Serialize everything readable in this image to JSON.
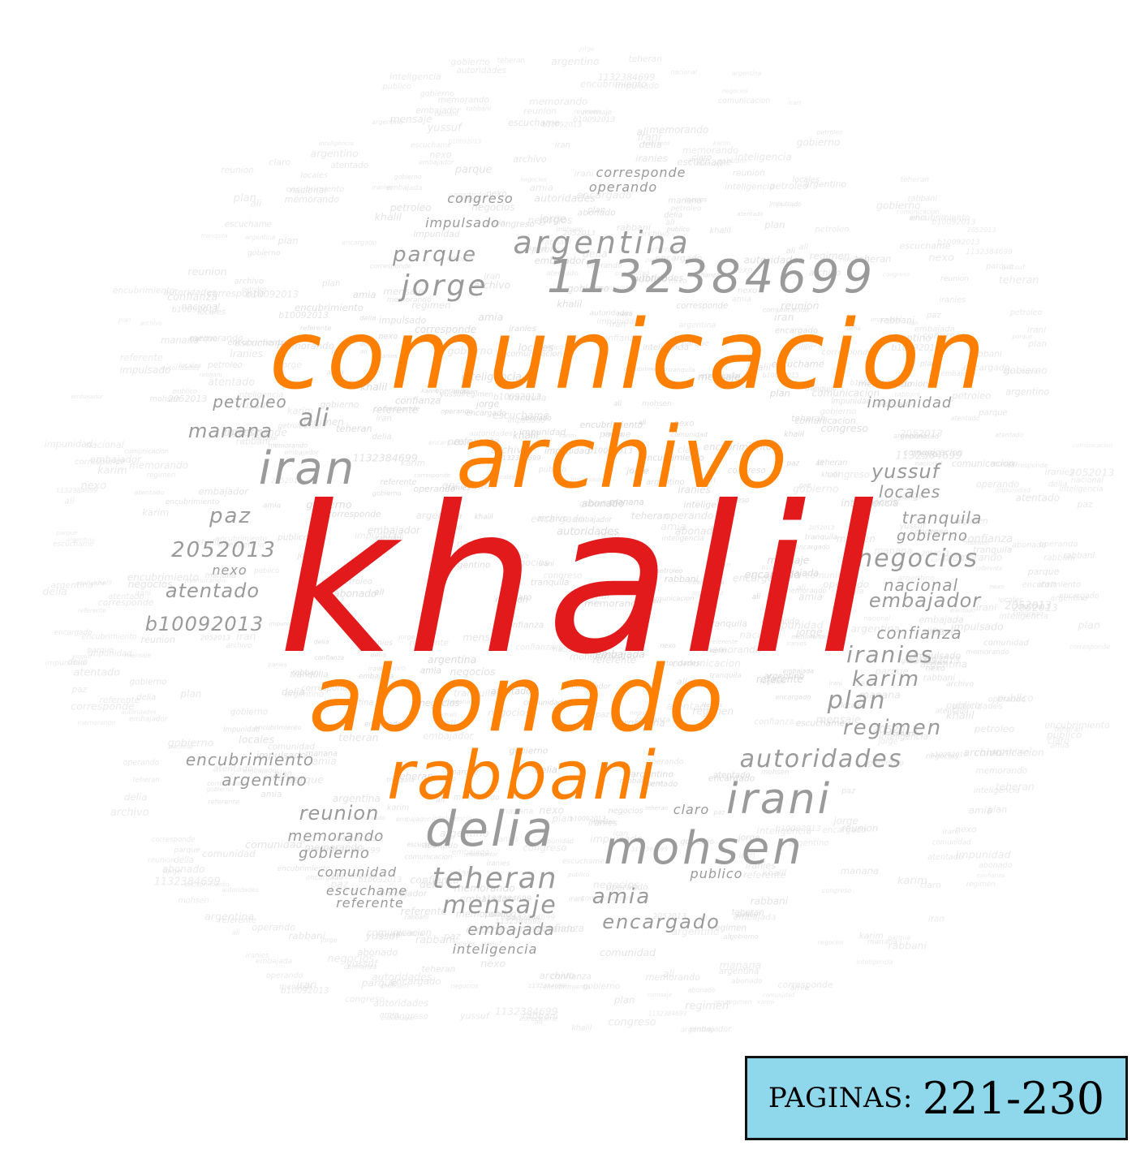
{
  "cloud": {
    "colors": {
      "primary": "#e31a1c",
      "secondary": "#ff7f00",
      "tertiary": "#9a9a9a",
      "background_words": "#d6d6d6"
    },
    "words": [
      {
        "text": "khalil",
        "tier": "primary"
      },
      {
        "text": "comunicacion",
        "tier": "secondary"
      },
      {
        "text": "archivo",
        "tier": "secondary"
      },
      {
        "text": "abonado",
        "tier": "secondary"
      },
      {
        "text": "rabbani",
        "tier": "secondary"
      },
      {
        "text": "1132384699",
        "tier": "tertiary"
      },
      {
        "text": "argentina",
        "tier": "tertiary"
      },
      {
        "text": "parque",
        "tier": "tertiary"
      },
      {
        "text": "jorge",
        "tier": "tertiary"
      },
      {
        "text": "iran",
        "tier": "tertiary"
      },
      {
        "text": "delia",
        "tier": "tertiary"
      },
      {
        "text": "mohsen",
        "tier": "tertiary"
      },
      {
        "text": "irani",
        "tier": "tertiary"
      },
      {
        "text": "teheran",
        "tier": "tertiary"
      },
      {
        "text": "mensaje",
        "tier": "tertiary"
      },
      {
        "text": "amia",
        "tier": "tertiary"
      },
      {
        "text": "encargado",
        "tier": "tertiary"
      },
      {
        "text": "autoridades",
        "tier": "tertiary"
      },
      {
        "text": "negocios",
        "tier": "tertiary"
      },
      {
        "text": "nacional",
        "tier": "tertiary"
      },
      {
        "text": "embajador",
        "tier": "tertiary"
      },
      {
        "text": "confianza",
        "tier": "tertiary"
      },
      {
        "text": "iranies",
        "tier": "tertiary"
      },
      {
        "text": "karim",
        "tier": "tertiary"
      },
      {
        "text": "plan",
        "tier": "tertiary"
      },
      {
        "text": "regimen",
        "tier": "tertiary"
      },
      {
        "text": "yussuf",
        "tier": "tertiary"
      },
      {
        "text": "locales",
        "tier": "tertiary"
      },
      {
        "text": "tranquila",
        "tier": "tertiary"
      },
      {
        "text": "gobierno",
        "tier": "tertiary"
      },
      {
        "text": "impunidad",
        "tier": "tertiary"
      },
      {
        "text": "petroleo",
        "tier": "tertiary"
      },
      {
        "text": "manana",
        "tier": "tertiary"
      },
      {
        "text": "ali",
        "tier": "tertiary"
      },
      {
        "text": "paz",
        "tier": "tertiary"
      },
      {
        "text": "2052013",
        "tier": "tertiary"
      },
      {
        "text": "nexo",
        "tier": "tertiary"
      },
      {
        "text": "atentado",
        "tier": "tertiary"
      },
      {
        "text": "b10092013",
        "tier": "tertiary"
      },
      {
        "text": "encubrimiento",
        "tier": "tertiary"
      },
      {
        "text": "argentino",
        "tier": "tertiary"
      },
      {
        "text": "reunion",
        "tier": "tertiary"
      },
      {
        "text": "memorando",
        "tier": "tertiary"
      },
      {
        "text": "gobierno",
        "tier": "tertiary"
      },
      {
        "text": "comunidad",
        "tier": "tertiary"
      },
      {
        "text": "referente",
        "tier": "tertiary"
      },
      {
        "text": "embajada",
        "tier": "tertiary"
      },
      {
        "text": "operando",
        "tier": "tertiary"
      },
      {
        "text": "impulsado",
        "tier": "tertiary"
      },
      {
        "text": "congreso",
        "tier": "tertiary"
      },
      {
        "text": "corresponde",
        "tier": "tertiary"
      },
      {
        "text": "claro",
        "tier": "tertiary"
      },
      {
        "text": "publico",
        "tier": "tertiary"
      },
      {
        "text": "inteligencia",
        "tier": "tertiary"
      },
      {
        "text": "escuchame",
        "tier": "tertiary"
      }
    ]
  },
  "badge": {
    "label": "PAGINAS:",
    "range": "221-230"
  }
}
